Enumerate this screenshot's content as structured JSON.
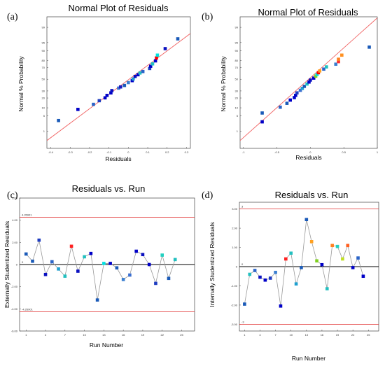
{
  "chart_data": [
    {
      "id": "a",
      "panel_label": "(a)",
      "type": "scatter",
      "title": "Normal Plot of Residuals",
      "xlabel": "Residuals",
      "ylabel": "Normal % Probability",
      "xlim": [
        -0.42,
        0.32
      ],
      "xticks": [
        -0.4,
        -0.3,
        -0.2,
        -0.1,
        0,
        0.1,
        0.2,
        0.3
      ],
      "xtick_labels": [
        "-0.4",
        "-0.3",
        "-0.2",
        "-0.1",
        "0",
        "0.1",
        "0.2",
        "0.3"
      ],
      "yticks": [
        1,
        5,
        10,
        20,
        30,
        50,
        70,
        80,
        90,
        95,
        99
      ],
      "ytick_labels": [
        "1",
        "5",
        "10",
        "20",
        "30",
        "50",
        "70",
        "80",
        "90",
        "95",
        "99"
      ],
      "ylim_z": [
        -3.1,
        2.8
      ],
      "fit_line": [
        [
          -0.42,
          -2.75
        ],
        [
          0.32,
          2.05
        ]
      ],
      "points": [
        {
          "x": -0.36,
          "p": 3.2,
          "c": "#1a5ab8"
        },
        {
          "x": -0.26,
          "p": 8.8,
          "c": "#0000c8"
        },
        {
          "x": -0.18,
          "p": 13.0,
          "c": "#2a64c8"
        },
        {
          "x": -0.15,
          "p": 16.8,
          "c": "#1e3cc0"
        },
        {
          "x": -0.12,
          "p": 20.2,
          "c": "#0000c8"
        },
        {
          "x": -0.11,
          "p": 23.4,
          "c": "#0000c8"
        },
        {
          "x": -0.09,
          "p": 27.0,
          "c": "#0000c8"
        },
        {
          "x": -0.085,
          "p": 30.5,
          "c": "#0a10c0"
        },
        {
          "x": -0.05,
          "p": 34.5,
          "c": "#3b6fd0"
        },
        {
          "x": -0.04,
          "p": 36.5,
          "c": "#1a1ac0"
        },
        {
          "x": -0.02,
          "p": 39.0,
          "c": "#1a5ab8"
        },
        {
          "x": 0.0,
          "p": 44.0,
          "c": "#3a7fd0"
        },
        {
          "x": 0.02,
          "p": 47.5,
          "c": "#0000c8"
        },
        {
          "x": 0.025,
          "p": 50.5,
          "c": "#1fa0d0"
        },
        {
          "x": 0.035,
          "p": 55.0,
          "c": "#0a10c0"
        },
        {
          "x": 0.05,
          "p": 58.0,
          "c": "#0000c8"
        },
        {
          "x": 0.06,
          "p": 61.0,
          "c": "#22c0c0"
        },
        {
          "x": 0.075,
          "p": 63.5,
          "c": "#2a64c8"
        },
        {
          "x": 0.11,
          "p": 68.5,
          "c": "#1e3cc0"
        },
        {
          "x": 0.115,
          "p": 72.0,
          "c": "#0000c8"
        },
        {
          "x": 0.125,
          "p": 75.5,
          "c": "#22c0c0"
        },
        {
          "x": 0.14,
          "p": 79.5,
          "c": "#0000c8"
        },
        {
          "x": 0.145,
          "p": 83.0,
          "c": "#ff0000"
        },
        {
          "x": 0.15,
          "p": 86.0,
          "c": "#00e0e0"
        },
        {
          "x": 0.19,
          "p": 91.5,
          "c": "#0a10c0"
        },
        {
          "x": 0.255,
          "p": 96.5,
          "c": "#1a5ab8"
        }
      ]
    },
    {
      "id": "b",
      "panel_label": "(b)",
      "type": "scatter",
      "title": "Normal Plot of Residuals",
      "xlabel": "Residuals",
      "ylabel": "Normal % Probability",
      "xlim": [
        -1.05,
        1.0
      ],
      "xticks": [
        -1,
        -0.5,
        0,
        0.5,
        1
      ],
      "xtick_labels": [
        "-1",
        "-0.5",
        "0",
        "0.5",
        "1"
      ],
      "yticks": [
        1,
        5,
        10,
        20,
        30,
        50,
        70,
        80,
        90,
        95,
        99
      ],
      "ytick_labels": [
        "1",
        "5",
        "10",
        "20",
        "30",
        "50",
        "70",
        "80",
        "90",
        "95",
        "99"
      ],
      "ylim_z": [
        -3.1,
        2.8
      ],
      "fit_line": [
        [
          -1.05,
          -2.75
        ],
        [
          1.0,
          2.75
        ]
      ],
      "points": [
        {
          "x": -0.72,
          "p": 2.8,
          "c": "#0000c8"
        },
        {
          "x": -0.72,
          "p": 6.5,
          "c": "#1a5ab8"
        },
        {
          "x": -0.45,
          "p": 10.5,
          "c": "#2a64c8"
        },
        {
          "x": -0.35,
          "p": 14.0,
          "c": "#1a5ab8"
        },
        {
          "x": -0.3,
          "p": 17.5,
          "c": "#0000c8"
        },
        {
          "x": -0.24,
          "p": 20.5,
          "c": "#0000c8"
        },
        {
          "x": -0.22,
          "p": 23.5,
          "c": "#0000c8"
        },
        {
          "x": -0.2,
          "p": 27.0,
          "c": "#1e3cc0"
        },
        {
          "x": -0.15,
          "p": 31.0,
          "c": "#3b6fd0"
        },
        {
          "x": -0.12,
          "p": 34.0,
          "c": "#1fa0d0"
        },
        {
          "x": -0.09,
          "p": 37.5,
          "c": "#1a5ab8"
        },
        {
          "x": -0.05,
          "p": 41.5,
          "c": "#22c0c0"
        },
        {
          "x": -0.02,
          "p": 45.0,
          "c": "#0000c8"
        },
        {
          "x": 0.0,
          "p": 48.5,
          "c": "#0a10c0"
        },
        {
          "x": 0.05,
          "p": 52.0,
          "c": "#0000c8"
        },
        {
          "x": 0.08,
          "p": 55.5,
          "c": "#80d020"
        },
        {
          "x": 0.1,
          "p": 58.5,
          "c": "#00e0e0"
        },
        {
          "x": 0.12,
          "p": 61.5,
          "c": "#ff0000"
        },
        {
          "x": 0.14,
          "p": 64.5,
          "c": "#ffa020"
        },
        {
          "x": 0.2,
          "p": 67.5,
          "c": "#2a64c8"
        },
        {
          "x": 0.24,
          "p": 71.0,
          "c": "#22c0c0"
        },
        {
          "x": 0.38,
          "p": 75.0,
          "c": "#3a7fd0"
        },
        {
          "x": 0.42,
          "p": 78.5,
          "c": "#ff3030"
        },
        {
          "x": 0.42,
          "p": 81.5,
          "c": "#ff8020"
        },
        {
          "x": 0.47,
          "p": 86.0,
          "c": "#ff9020"
        },
        {
          "x": 0.88,
          "p": 92.5,
          "c": "#1a5ab8"
        }
      ]
    },
    {
      "id": "c",
      "panel_label": "(c)",
      "type": "line",
      "title": "Residuals vs. Run",
      "xlabel": "Run Number",
      "ylabel": "Externally Studentized Residuals",
      "xlim": [
        0,
        27
      ],
      "ylim": [
        -6.0,
        6.0
      ],
      "xticks": [
        1,
        4,
        7,
        10,
        13,
        16,
        19,
        22,
        25
      ],
      "xtick_labels": [
        "1",
        "4",
        "7",
        "10",
        "13",
        "16",
        "19",
        "22",
        "25"
      ],
      "yticks": [
        -6,
        -4,
        -2,
        0,
        2,
        4,
        6
      ],
      "ytick_labels": [
        "-6.00",
        "-4.00",
        "-2.00",
        "0",
        "2.00",
        "4.00",
        "6.00"
      ],
      "limits": [
        4.26901,
        -4.26901
      ],
      "limit_labels": [
        "4.26901",
        "-4.26901"
      ],
      "zero_label": "0",
      "values": [
        0.95,
        0.3,
        2.2,
        -0.9,
        0.25,
        -0.4,
        -1.05,
        1.65,
        -0.6,
        0.7,
        1.0,
        -3.2,
        0.1,
        0.1,
        -0.3,
        -1.35,
        -0.95,
        1.2,
        0.9,
        0.0,
        -1.7,
        0.85,
        -1.25,
        0.45
      ],
      "colors": [
        "#1a5ab8",
        "#1a5ab8",
        "#1e3cc0",
        "#0a10c0",
        "#2a64c8",
        "#1fa0d0",
        "#22c0c0",
        "#ff2020",
        "#0a10c0",
        "#22c0c0",
        "#0000c8",
        "#1a5ab8",
        "#00e0e0",
        "#0000c8",
        "#1a5ab8",
        "#3a7fd0",
        "#3b6fd0",
        "#0000c8",
        "#0a10c0",
        "#0000c8",
        "#1e3cc0",
        "#22d0c0",
        "#1a5ab8",
        "#22c0c0"
      ]
    },
    {
      "id": "d",
      "panel_label": "(d)",
      "type": "line",
      "title": "Residuals vs. Run",
      "xlabel": "Run Number",
      "ylabel": "Internally Studentized Residuals",
      "xlim": [
        0,
        27
      ],
      "ylim": [
        -3.35,
        3.35
      ],
      "xticks": [
        1,
        4,
        7,
        10,
        13,
        16,
        19,
        22,
        25
      ],
      "xtick_labels": [
        "1",
        "4",
        "7",
        "10",
        "13",
        "16",
        "19",
        "22",
        "25"
      ],
      "yticks": [
        -3,
        -2,
        -1,
        0,
        1,
        2,
        3
      ],
      "ytick_labels": [
        "-3.00",
        "-2.00",
        "-1.00",
        "0",
        "1.00",
        "2.00",
        "3.00"
      ],
      "limits": [
        3,
        -3
      ],
      "limit_labels": [
        "3",
        "-3"
      ],
      "zero_label": "0",
      "values": [
        -1.95,
        -0.4,
        -0.2,
        -0.55,
        -0.7,
        -0.6,
        -0.3,
        -2.05,
        0.4,
        0.7,
        -0.9,
        -0.05,
        2.45,
        1.3,
        0.3,
        0.1,
        -1.15,
        1.1,
        1.05,
        0.4,
        1.1,
        -0.05,
        0.45,
        -0.5
      ],
      "colors": [
        "#1a5ab8",
        "#22c0c0",
        "#2a64c8",
        "#0a10c0",
        "#0000c8",
        "#1e3cc0",
        "#3a7fd0",
        "#0000c8",
        "#ff2020",
        "#22c0c0",
        "#1fa0d0",
        "#1a5ab8",
        "#1a5ab8",
        "#ffa020",
        "#80d020",
        "#0000c8",
        "#22c0c0",
        "#ff8020",
        "#22d0c0",
        "#c0e020",
        "#ff6020",
        "#0000c8",
        "#2a64c8",
        "#0000c8"
      ]
    }
  ]
}
